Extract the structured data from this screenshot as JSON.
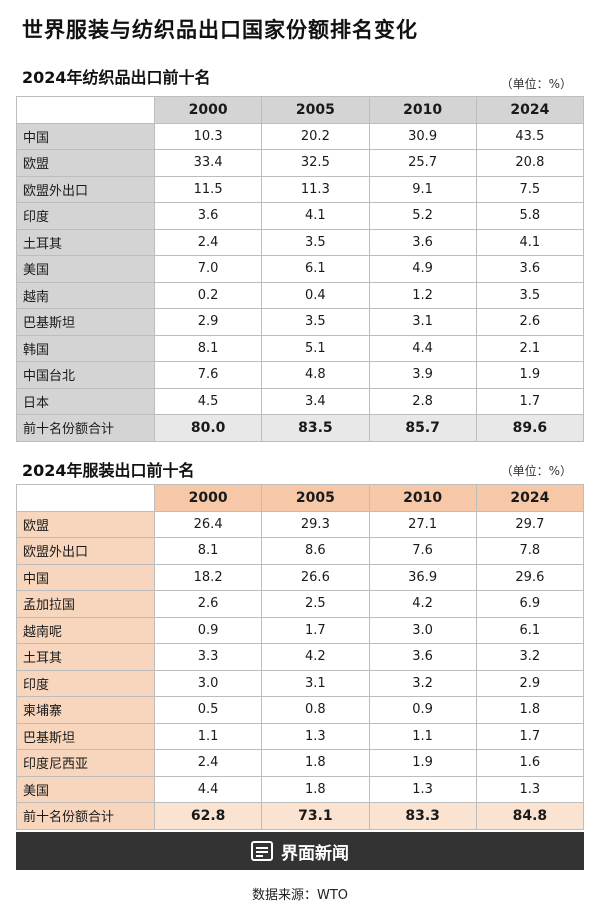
{
  "title": "世界服装与纺织品出口国家份额排名变化",
  "unit": "（单位：%）",
  "textile": {
    "subtitle": "2024年纺织品出口前十名",
    "headers": [
      "2000",
      "2005",
      "2010",
      "2024"
    ],
    "rows": [
      {
        "name": "中国",
        "values": [
          "10.3",
          "20.2",
          "30.9",
          "43.5"
        ]
      },
      {
        "name": "欧盟",
        "values": [
          "33.4",
          "32.5",
          "25.7",
          "20.8"
        ]
      },
      {
        "name": "欧盟外出口",
        "values": [
          "11.5",
          "11.3",
          "9.1",
          "7.5"
        ]
      },
      {
        "name": "印度",
        "values": [
          "3.6",
          "4.1",
          "5.2",
          "5.8"
        ]
      },
      {
        "name": "土耳其",
        "values": [
          "2.4",
          "3.5",
          "3.6",
          "4.1"
        ]
      },
      {
        "name": "美国",
        "values": [
          "7.0",
          "6.1",
          "4.9",
          "3.6"
        ]
      },
      {
        "name": "越南",
        "values": [
          "0.2",
          "0.4",
          "1.2",
          "3.5"
        ]
      },
      {
        "name": "巴基斯坦",
        "values": [
          "2.9",
          "3.5",
          "3.1",
          "2.6"
        ]
      },
      {
        "name": "韩国",
        "values": [
          "8.1",
          "5.1",
          "4.4",
          "2.1"
        ]
      },
      {
        "name": "中国台北",
        "values": [
          "7.6",
          "4.8",
          "3.9",
          "1.9"
        ]
      },
      {
        "name": "日本",
        "values": [
          "4.5",
          "3.4",
          "2.8",
          "1.7"
        ]
      }
    ],
    "total": {
      "name": "前十名份额合计",
      "values": [
        "80.0",
        "83.5",
        "85.7",
        "89.6"
      ]
    }
  },
  "apparel": {
    "subtitle": "2024年服装出口前十名",
    "headers": [
      "2000",
      "2005",
      "2010",
      "2024"
    ],
    "rows": [
      {
        "name": "欧盟",
        "values": [
          "26.4",
          "29.3",
          "27.1",
          "29.7"
        ]
      },
      {
        "name": "欧盟外出口",
        "values": [
          "8.1",
          "8.6",
          "7.6",
          "7.8"
        ]
      },
      {
        "name": "中国",
        "values": [
          "18.2",
          "26.6",
          "36.9",
          "29.6"
        ]
      },
      {
        "name": "孟加拉国",
        "values": [
          "2.6",
          "2.5",
          "4.2",
          "6.9"
        ]
      },
      {
        "name": "越南呢",
        "values": [
          "0.9",
          "1.7",
          "3.0",
          "6.1"
        ]
      },
      {
        "name": "土耳其",
        "values": [
          "3.3",
          "4.2",
          "3.6",
          "3.2"
        ]
      },
      {
        "name": "印度",
        "values": [
          "3.0",
          "3.1",
          "3.2",
          "2.9"
        ]
      },
      {
        "name": "柬埔寨",
        "values": [
          "0.5",
          "0.8",
          "0.9",
          "1.8"
        ]
      },
      {
        "name": "巴基斯坦",
        "values": [
          "1.1",
          "1.3",
          "1.1",
          "1.7"
        ]
      },
      {
        "name": "印度尼西亚",
        "values": [
          "2.4",
          "1.8",
          "1.9",
          "1.6"
        ]
      },
      {
        "name": "美国",
        "values": [
          "4.4",
          "1.8",
          "1.3",
          "1.3"
        ]
      }
    ],
    "total": {
      "name": "前十名份额合计",
      "values": [
        "62.8",
        "73.1",
        "83.3",
        "84.8"
      ]
    }
  },
  "brand": {
    "name": "界面新闻",
    "icon": "news-logo-icon"
  },
  "source": "数据来源：WTO"
}
